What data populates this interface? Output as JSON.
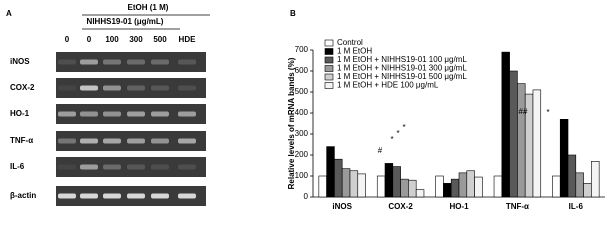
{
  "panel_a": {
    "label": "A",
    "treatment": "EtOH (1 M)",
    "dose_label": "NIHHS19-01 (μg/mL)",
    "lanes": [
      "0",
      "0",
      "100",
      "300",
      "500",
      "HDE"
    ],
    "genes": [
      "iNOS",
      "COX-2",
      "HO-1",
      "TNF-α",
      "IL-6",
      "β-actin"
    ]
  },
  "chart_data": {
    "type": "bar",
    "panel_label": "B",
    "y_label": "Relative levels of mRNA bands (%)",
    "categories": [
      "iNOS",
      "COX-2",
      "HO-1",
      "TNF-α",
      "IL-6"
    ],
    "ylim": [
      0,
      700
    ],
    "yticks": [
      0,
      100,
      200,
      300,
      400,
      500,
      600,
      700
    ],
    "series": [
      {
        "name": "Control",
        "color": "#ffffff",
        "values": [
          100,
          100,
          100,
          100,
          100
        ]
      },
      {
        "name": "1 M EtOH",
        "color": "#000000",
        "values": [
          240,
          160,
          65,
          690,
          370
        ]
      },
      {
        "name": "1 M EtOH + NIHHS19-01 100 μg/mL",
        "color": "#595959",
        "values": [
          180,
          145,
          85,
          600,
          200
        ]
      },
      {
        "name": "1 M EtOH + NIHHS19-01 300 μg/mL",
        "color": "#9a9a9a",
        "values": [
          135,
          85,
          115,
          540,
          115
        ]
      },
      {
        "name": "1 M EtOH + NIHHS19-01 500 μg/mL",
        "color": "#cfcfcf",
        "values": [
          125,
          80,
          125,
          490,
          65
        ]
      },
      {
        "name": "1 M EtOH + HDE 100 μg/mL",
        "color": "#f4f4f4",
        "values": [
          110,
          35,
          95,
          510,
          170
        ]
      }
    ],
    "annotations": [
      "#",
      "*",
      "*",
      "*",
      "##",
      "*"
    ]
  }
}
